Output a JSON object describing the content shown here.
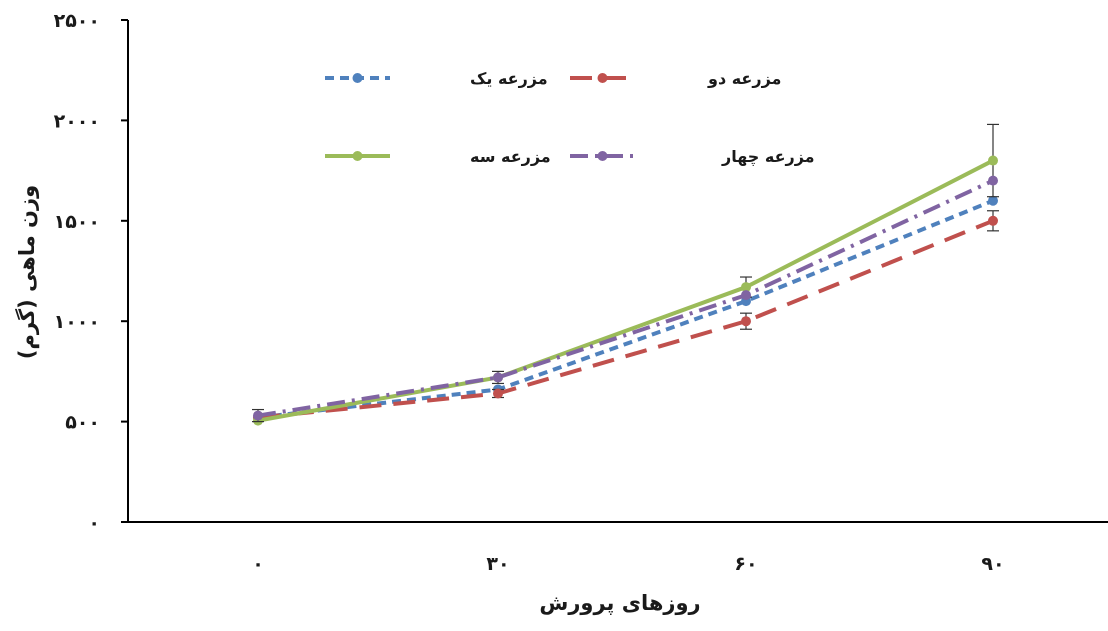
{
  "chart_data": {
    "type": "line",
    "title": "",
    "xlabel": "روزهای پرورش",
    "ylabel": "وزن ماهی (گرم)",
    "x": [
      0,
      30,
      60,
      90
    ],
    "x_tick_labels": [
      "۰",
      "۳۰",
      "۶۰",
      "۹۰"
    ],
    "ylim": [
      0,
      2500
    ],
    "y_ticks": [
      0,
      500,
      1000,
      1500,
      2000,
      2500
    ],
    "y_tick_labels": [
      "۰",
      "۵۰۰",
      "۱۰۰۰",
      "۱۵۰۰",
      "۲۰۰۰",
      "۲۵۰۰"
    ],
    "grid": false,
    "legend_position": "top-center",
    "series": [
      {
        "name": "مزرعه یک",
        "values": [
          520,
          660,
          1100,
          1600
        ],
        "errors": [
          0,
          0,
          0,
          0
        ],
        "color": "#4f81bd",
        "dash": "short-dash"
      },
      {
        "name": "مزرعه دو",
        "values": [
          520,
          640,
          1000,
          1500
        ],
        "errors": [
          0,
          20,
          40,
          50
        ],
        "color": "#c0504d",
        "dash": "long-dash"
      },
      {
        "name": "مزرعه سه",
        "values": [
          505,
          720,
          1170,
          1800
        ],
        "errors": [
          0,
          0,
          50,
          180
        ],
        "color": "#9bbb59",
        "dash": "solid"
      },
      {
        "name": "مزرعه چهار",
        "values": [
          530,
          720,
          1130,
          1700
        ],
        "errors": [
          30,
          30,
          0,
          0
        ],
        "color": "#8064a2",
        "dash": "dash-dot"
      }
    ]
  }
}
